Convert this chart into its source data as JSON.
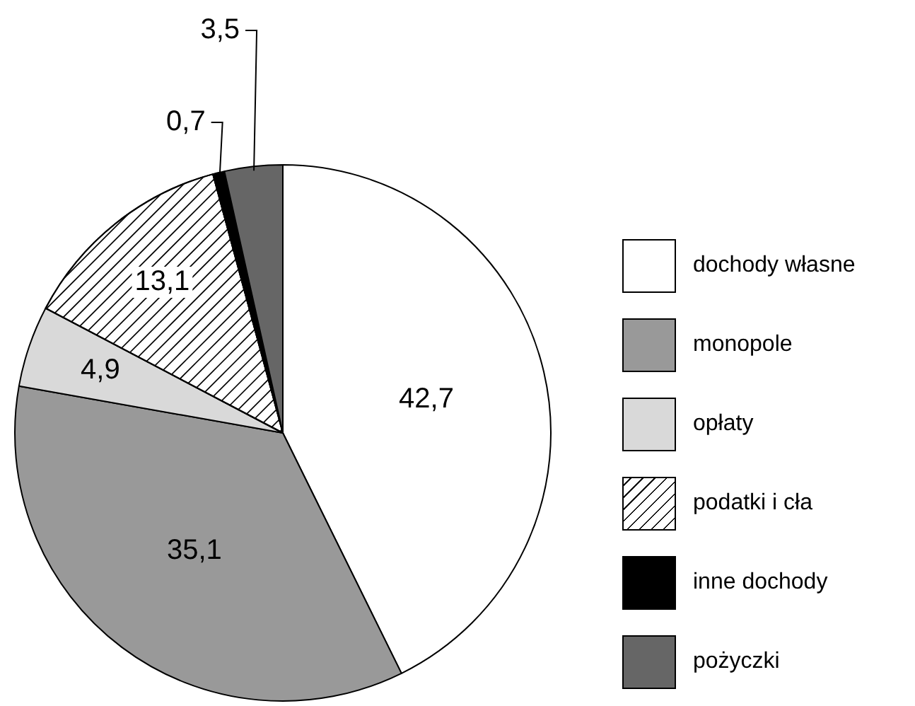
{
  "chart_data": {
    "type": "pie",
    "categories": [
      "dochody własne",
      "monopole",
      "opłaty",
      "podatki i cła",
      "inne dochody",
      "pożyczki"
    ],
    "values": [
      42.7,
      35.1,
      4.9,
      13.1,
      0.7,
      3.5
    ],
    "colors": [
      "#ffffff",
      "#999999",
      "#d9d9d9",
      "#ffffff",
      "#000000",
      "#666666"
    ],
    "value_labels": [
      "42,7",
      "35,1",
      "4,9",
      "13,1",
      "0,7",
      "3,5"
    ],
    "legend": "right"
  }
}
